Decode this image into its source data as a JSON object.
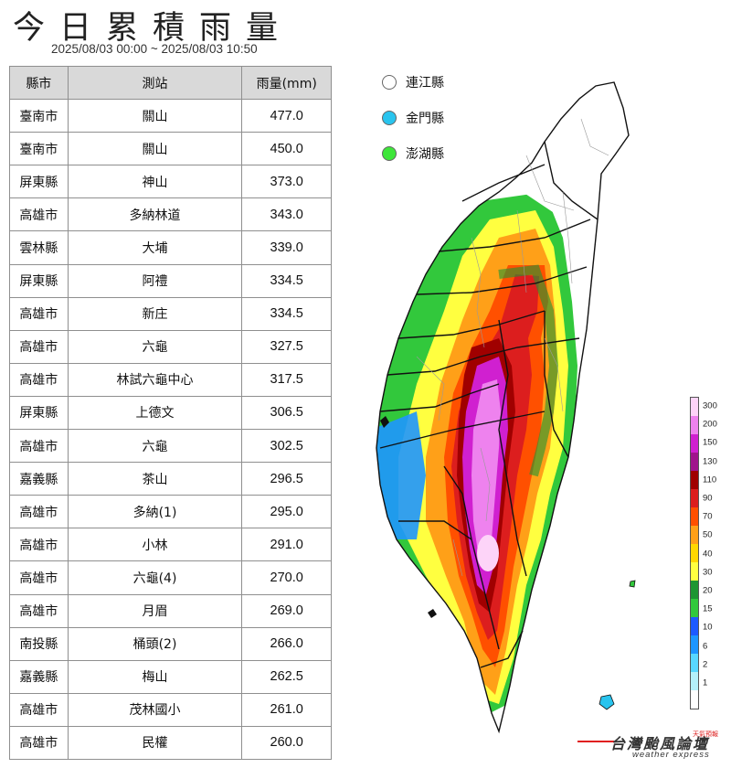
{
  "title": "今日累積雨量",
  "date_range": "2025/08/03 00:00 ~ 2025/08/03 10:50",
  "table": {
    "headers": [
      "縣市",
      "測站",
      "雨量(mm)"
    ],
    "rows": [
      [
        "臺南市",
        "關山",
        "477.0"
      ],
      [
        "臺南市",
        "關山",
        "450.0"
      ],
      [
        "屏東縣",
        "神山",
        "373.0"
      ],
      [
        "高雄市",
        "多納林道",
        "343.0"
      ],
      [
        "雲林縣",
        "大埔",
        "339.0"
      ],
      [
        "屏東縣",
        "阿禮",
        "334.5"
      ],
      [
        "高雄市",
        "新庄",
        "334.5"
      ],
      [
        "高雄市",
        "六龜",
        "327.5"
      ],
      [
        "高雄市",
        "林試六龜中心",
        "317.5"
      ],
      [
        "屏東縣",
        "上德文",
        "306.5"
      ],
      [
        "高雄市",
        "六龜",
        "302.5"
      ],
      [
        "嘉義縣",
        "茶山",
        "296.5"
      ],
      [
        "高雄市",
        "多納(1)",
        "295.0"
      ],
      [
        "高雄市",
        "小林",
        "291.0"
      ],
      [
        "高雄市",
        "六龜(4)",
        "270.0"
      ],
      [
        "高雄市",
        "月眉",
        "269.0"
      ],
      [
        "南投縣",
        "桶頭(2)",
        "266.0"
      ],
      [
        "嘉義縣",
        "梅山",
        "262.5"
      ],
      [
        "高雄市",
        "茂林國小",
        "261.0"
      ],
      [
        "高雄市",
        "民權",
        "260.0"
      ]
    ]
  },
  "islands_legend": [
    {
      "name": "連江縣",
      "color": "#ffffff"
    },
    {
      "name": "金門縣",
      "color": "#29c4ee"
    },
    {
      "name": "澎湖縣",
      "color": "#3ee63a"
    }
  ],
  "color_scale": {
    "labels": [
      "300",
      "200",
      "150",
      "130",
      "110",
      "90",
      "70",
      "50",
      "40",
      "30",
      "20",
      "15",
      "10",
      "6",
      "2",
      "1"
    ],
    "colors": [
      "#fdd4f8",
      "#ee82ee",
      "#d020d0",
      "#a0148c",
      "#a00000",
      "#dc1e1e",
      "#ff5000",
      "#ffa018",
      "#ffd700",
      "#ffff40",
      "#1e9632",
      "#32c83c",
      "#1e5aff",
      "#1e96ff",
      "#58d7ff",
      "#b4f0fa",
      "#ffffff"
    ]
  },
  "brand": {
    "tag": "天氣預報",
    "name": "台灣颱風論壇",
    "sub": "weather express"
  }
}
